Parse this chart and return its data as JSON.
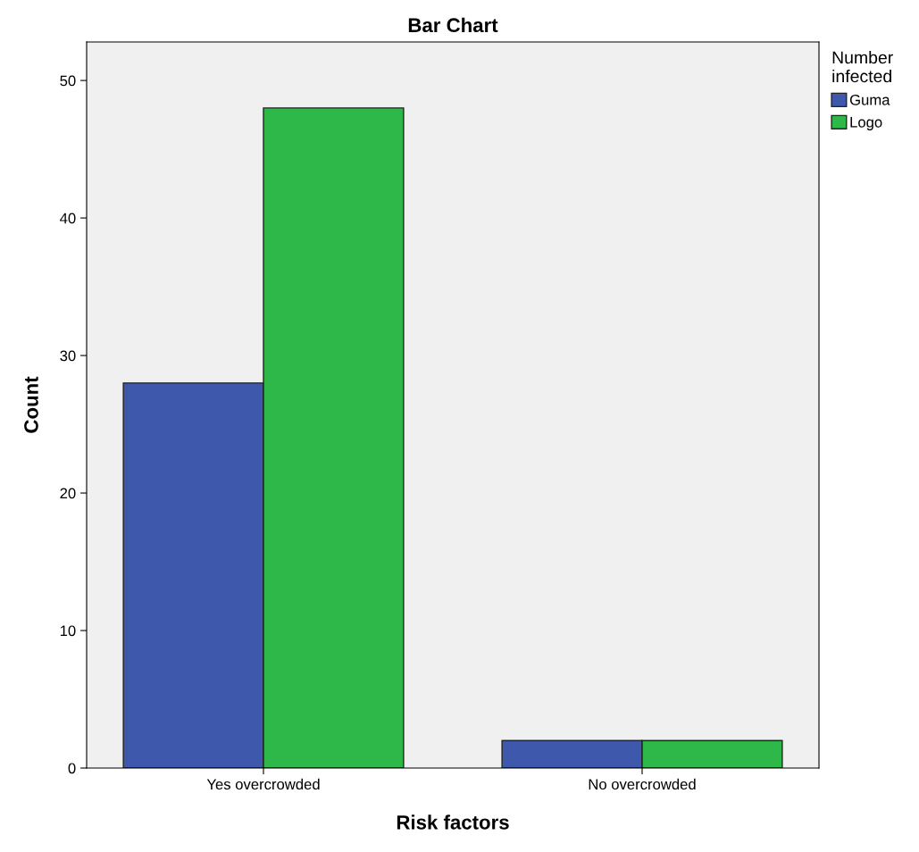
{
  "chart_data": {
    "type": "bar",
    "title": "Bar Chart",
    "xlabel": "Risk factors",
    "ylabel": "Count",
    "legend_title": "Number\ninfected",
    "categories": [
      "Yes overcrowded",
      "No overcrowded"
    ],
    "series": [
      {
        "name": "Guma",
        "color": "#3e58ac",
        "values": [
          28,
          2
        ]
      },
      {
        "name": "Logo",
        "color": "#2eb84a",
        "values": [
          48,
          2
        ]
      }
    ],
    "ylim": [
      0,
      52.8
    ],
    "yticks": [
      0,
      10,
      20,
      30,
      40,
      50
    ],
    "grid": false,
    "legend": "right"
  }
}
